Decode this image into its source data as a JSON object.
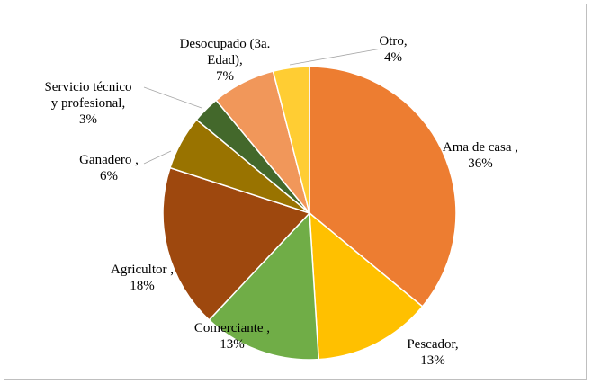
{
  "chart_data": {
    "type": "pie",
    "title": "",
    "slices": [
      {
        "name": "Ama de casa",
        "value": 36,
        "label_lines": [
          "Ama de casa ,",
          "36%"
        ],
        "color": "#ED7D31"
      },
      {
        "name": "Pescador",
        "value": 13,
        "label_lines": [
          "Pescador,",
          "13%"
        ],
        "color": "#FFC000"
      },
      {
        "name": "Comerciante",
        "value": 13,
        "label_lines": [
          "Comerciante ,",
          "13%"
        ],
        "color": "#70AD47"
      },
      {
        "name": "Agricultor",
        "value": 18,
        "label_lines": [
          "Agricultor ,",
          "18%"
        ],
        "color": "#9E480E"
      },
      {
        "name": "Ganadero",
        "value": 6,
        "label_lines": [
          "Ganadero ,",
          "6%"
        ],
        "color": "#997300"
      },
      {
        "name": "Servicio técnico y profesional",
        "value": 3,
        "label_lines": [
          "Servicio técnico",
          "y profesional,",
          "3%"
        ],
        "color": "#43682B"
      },
      {
        "name": "Desocupado (3a. Edad)",
        "value": 7,
        "label_lines": [
          "Desocupado (3a.",
          "Edad),",
          "7%"
        ],
        "color": "#F1975A"
      },
      {
        "name": "Otro",
        "value": 4,
        "label_lines": [
          "Otro,",
          "4%"
        ],
        "color": "#FFCD33"
      }
    ]
  }
}
